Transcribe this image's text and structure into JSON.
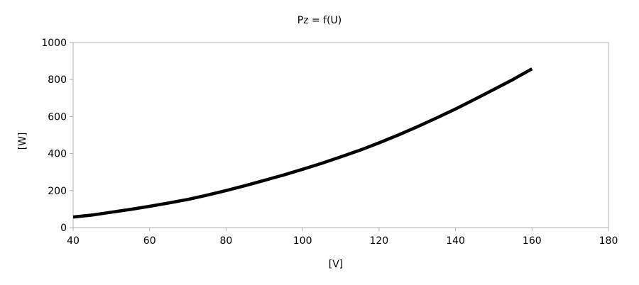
{
  "chart_data": {
    "type": "line",
    "title": "Pz = f(U)",
    "xlabel": "[V]",
    "ylabel": "[W]",
    "xlim": [
      40,
      180
    ],
    "ylim": [
      0,
      1000
    ],
    "xticks": [
      "40",
      "60",
      "80",
      "100",
      "120",
      "140",
      "160",
      "180"
    ],
    "yticks": [
      "0",
      "200",
      "400",
      "600",
      "800",
      "1000"
    ],
    "grid": false,
    "legend": "none",
    "series": [
      {
        "color": "#000000",
        "x": [
          40,
          45,
          50,
          55,
          60,
          65,
          70,
          75,
          80,
          85,
          90,
          95,
          100,
          105,
          110,
          115,
          120,
          125,
          130,
          135,
          140,
          145,
          150,
          155,
          160
        ],
        "y": [
          57,
          68,
          83,
          98,
          115,
          133,
          152,
          175,
          200,
          227,
          255,
          284,
          315,
          347,
          382,
          418,
          458,
          500,
          545,
          592,
          641,
          693,
          746,
          800,
          858
        ]
      }
    ]
  }
}
